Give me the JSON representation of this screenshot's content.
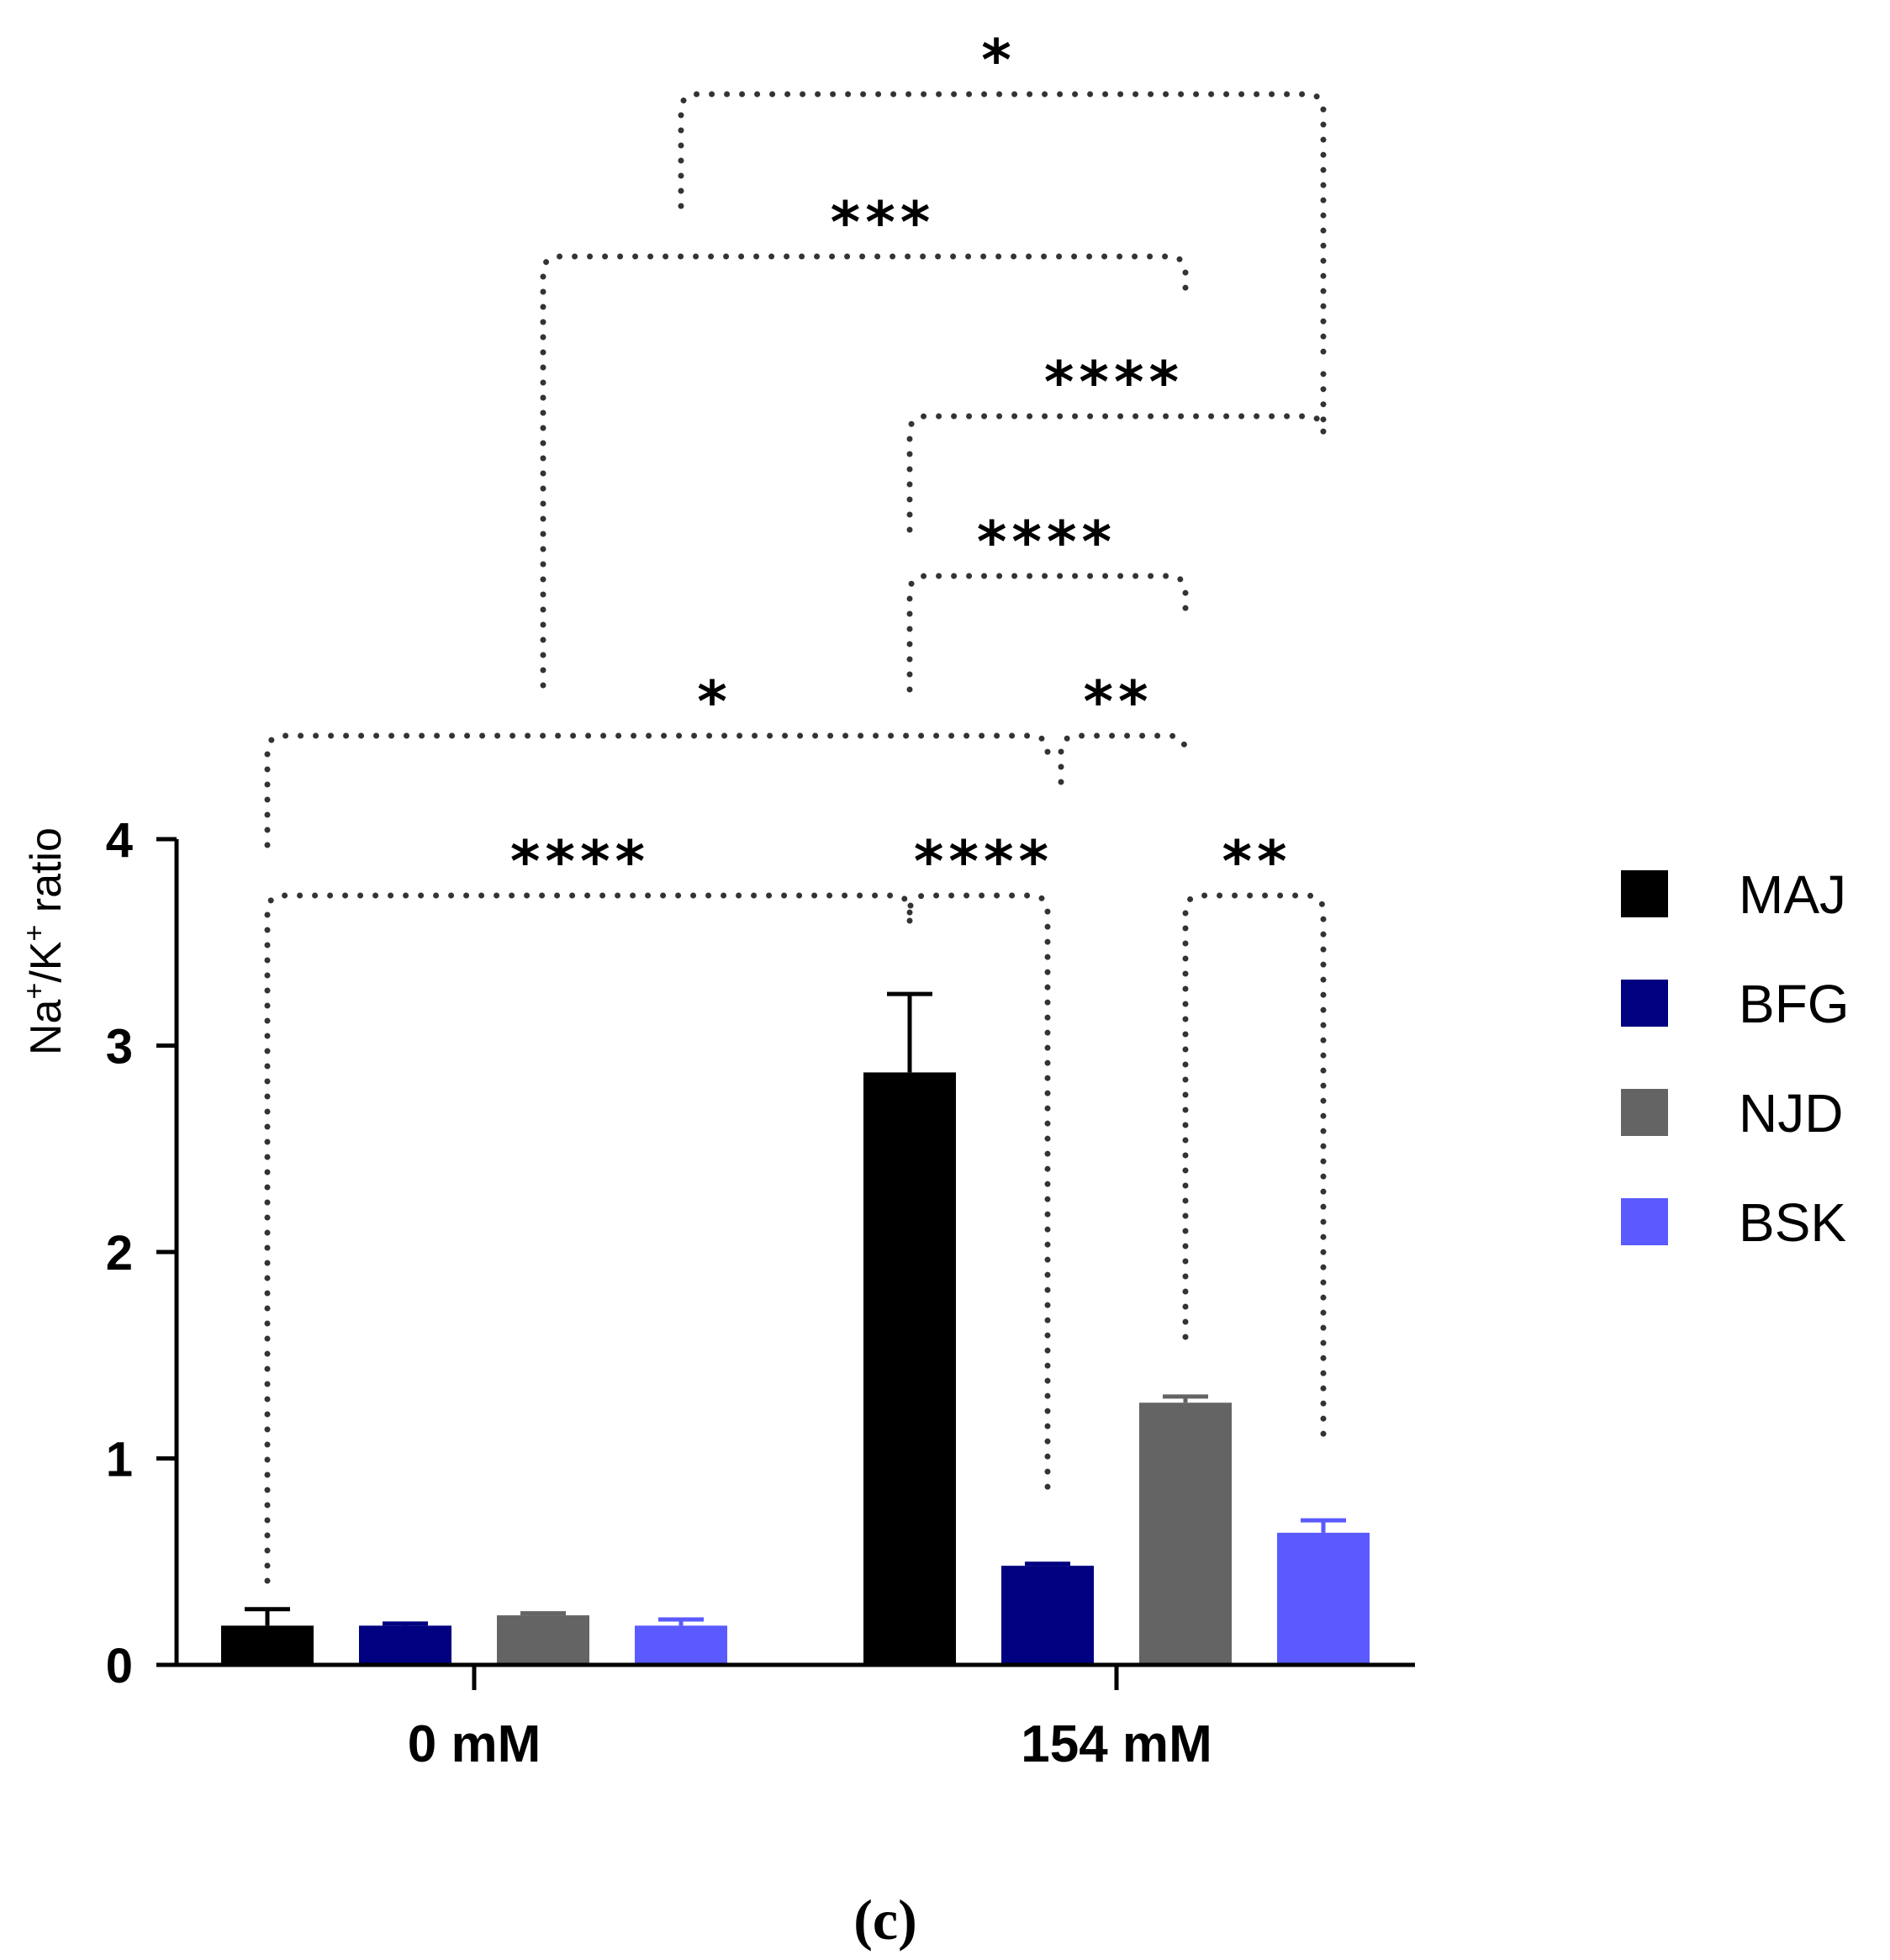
{
  "chart_data": {
    "type": "bar",
    "categories": [
      "0 mM",
      "154 mM"
    ],
    "series": [
      {
        "name": "MAJ",
        "color": "#000000",
        "values": [
          0.19,
          2.87
        ],
        "errors": [
          0.08,
          0.38
        ]
      },
      {
        "name": "BFG",
        "color": "#000080",
        "values": [
          0.19,
          0.48
        ],
        "errors": [
          0.01,
          0.01
        ]
      },
      {
        "name": "NJD",
        "color": "#646464",
        "values": [
          0.24,
          1.27
        ],
        "errors": [
          0.01,
          0.03
        ]
      },
      {
        "name": "BSK",
        "color": "#5a5aff",
        "values": [
          0.19,
          0.64
        ],
        "errors": [
          0.03,
          0.06
        ]
      }
    ],
    "ylabel": "Na+/K+ ratio",
    "ylabel_parts": {
      "a": "Na",
      "sup1": "+",
      "b": "/K",
      "sup2": "+",
      "c": " ratio"
    },
    "ylim": [
      0,
      4
    ],
    "yticks": [
      "0",
      "1",
      "2",
      "3",
      "4"
    ],
    "legend_position": "right",
    "caption": "(c)",
    "significance": [
      {
        "from": [
          0,
          0
        ],
        "to": [
          1,
          0
        ],
        "label": "****"
      },
      {
        "from": [
          1,
          0
        ],
        "to": [
          1,
          1
        ],
        "label": "****"
      },
      {
        "from": [
          1,
          2
        ],
        "to": [
          1,
          3
        ],
        "label": "**"
      },
      {
        "from": [
          0,
          0
        ],
        "to": [
          1,
          1
        ],
        "label": "*"
      },
      {
        "from": [
          1,
          1
        ],
        "to": [
          1,
          2
        ],
        "label": "**"
      },
      {
        "from": [
          1,
          0
        ],
        "to": [
          1,
          2
        ],
        "label": "****"
      },
      {
        "from": [
          1,
          0
        ],
        "to": [
          1,
          3
        ],
        "label": "****"
      },
      {
        "from": [
          0,
          2
        ],
        "to": [
          1,
          2
        ],
        "label": "***"
      },
      {
        "from": [
          0,
          3
        ],
        "to": [
          1,
          3
        ],
        "label": "*"
      }
    ]
  }
}
